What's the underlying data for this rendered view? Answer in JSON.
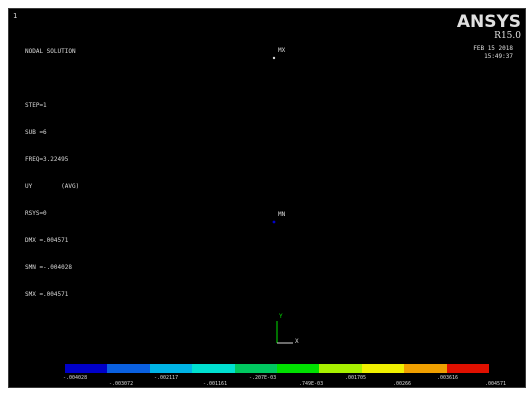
{
  "window": {
    "number": "1"
  },
  "solution_info": {
    "lines": [
      "NODAL SOLUTION",
      "",
      "STEP=1",
      "SUB =6",
      "FREQ=3.22495",
      "UY        (AVG)",
      "RSYS=0",
      "DMX =.004571",
      "SMN =-.004028",
      "SMX =.004571"
    ]
  },
  "brand": {
    "logo": "ANSYS",
    "version": "R15.0",
    "date": "FEB 15 2018",
    "time": "15:49:37"
  },
  "markers": {
    "mx": "MX",
    "mn": "MN"
  },
  "triad": {
    "y": "Y",
    "x": "X"
  },
  "colors": {
    "background": "#000000",
    "contour": [
      "#0000c8",
      "#0a60e0",
      "#00b4e6",
      "#00e0d0",
      "#00c860",
      "#00e000",
      "#a8f000",
      "#f0f000",
      "#f0a000",
      "#e01000"
    ]
  },
  "legend": {
    "upper_labels": [
      "-.004028",
      "-.002117",
      "-.207E-03",
      ".001705",
      ".003616"
    ],
    "lower_labels": [
      "-.003072",
      "-.001161",
      ".749E-03",
      ".00266",
      ".004571"
    ]
  }
}
